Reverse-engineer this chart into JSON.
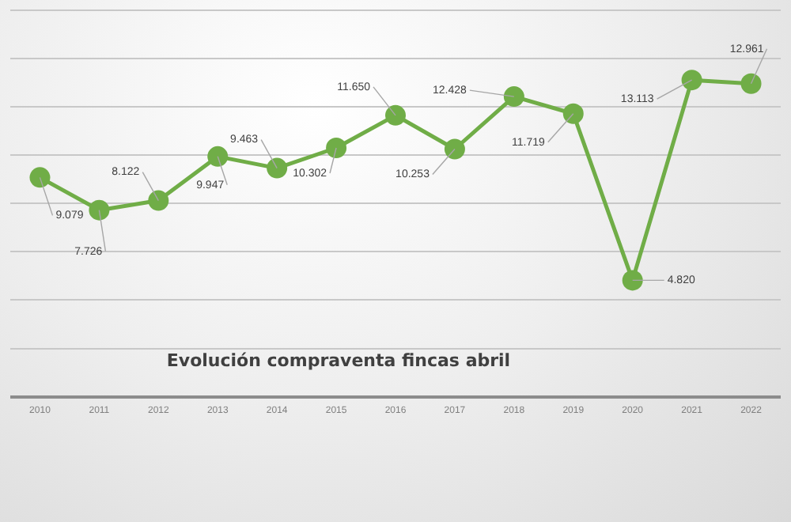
{
  "chart_data": {
    "type": "line",
    "title": "Evolución compraventa fincas abril",
    "categories": [
      "2010",
      "2011",
      "2012",
      "2013",
      "2014",
      "2015",
      "2016",
      "2017",
      "2018",
      "2019",
      "2020",
      "2021",
      "2022"
    ],
    "series": [
      {
        "color": "#70ad47",
        "values": [
          9079,
          7726,
          8122,
          9947,
          9463,
          10302,
          11650,
          10253,
          12428,
          11719,
          4820,
          13113,
          12961
        ],
        "value_labels": [
          "9.079",
          "7.726",
          "8.122",
          "9.947",
          "9.463",
          "10.302",
          "11.650",
          "10.253",
          "12.428",
          "11.719",
          "4.820",
          "13.113",
          "12.961"
        ]
      }
    ],
    "ylim": [
      0,
      16000
    ],
    "yticks": [
      {
        "value": 0,
        "label": null
      },
      {
        "value": 2000,
        "label": null
      },
      {
        "value": 4000,
        "label": null
      },
      {
        "value": 6000,
        "label": null
      },
      {
        "value": 8000,
        "label": null
      },
      {
        "value": 10000,
        "label": null
      },
      {
        "value": 12000,
        "label": null
      },
      {
        "value": 14000,
        "label": null
      },
      {
        "value": 16000,
        "label": null
      }
    ],
    "grid": "y",
    "legend": false,
    "tick_labels": "x",
    "marker": "circle",
    "line_style": "solid"
  }
}
